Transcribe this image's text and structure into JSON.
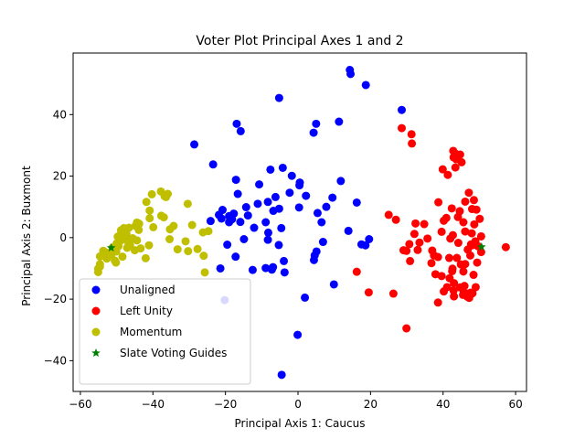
{
  "chart_data": {
    "type": "scatter",
    "title": "Voter Plot Principal Axes 1 and 2",
    "xlabel": "Principal Axis 1: Caucus",
    "ylabel": "Principal Axis 2: Buxmont",
    "xlim": [
      -62,
      63
    ],
    "ylim": [
      -50,
      60
    ],
    "xticks": [
      -60,
      -40,
      -20,
      0,
      20,
      40,
      60
    ],
    "yticks": [
      -40,
      -20,
      0,
      20,
      40
    ],
    "grid": false,
    "legend_position": "lower-left",
    "series": [
      {
        "name": "Unaligned",
        "color": "#0000ff",
        "marker": "circle",
        "points": [
          [
            14.3,
            54.5
          ],
          [
            14.5,
            53.2
          ],
          [
            18.7,
            49.6
          ],
          [
            -5.2,
            45.4
          ],
          [
            28.6,
            41.5
          ],
          [
            -16.9,
            37.0
          ],
          [
            5.0,
            37.0
          ],
          [
            11.3,
            37.7
          ],
          [
            4.3,
            34.1
          ],
          [
            -15.8,
            34.6
          ],
          [
            -28.6,
            30.3
          ],
          [
            -23.4,
            23.8
          ],
          [
            -7.6,
            22.1
          ],
          [
            -4.2,
            22.7
          ],
          [
            -1.7,
            20.1
          ],
          [
            0.5,
            17.9
          ],
          [
            11.8,
            18.4
          ],
          [
            -17.1,
            18.8
          ],
          [
            0.4,
            17.0
          ],
          [
            -10.7,
            17.3
          ],
          [
            -16.6,
            14.2
          ],
          [
            -8.3,
            11.6
          ],
          [
            -6.2,
            13.2
          ],
          [
            -5.2,
            9.4
          ],
          [
            -2.3,
            14.6
          ],
          [
            2.2,
            13.6
          ],
          [
            9.5,
            13.0
          ],
          [
            16.2,
            11.4
          ],
          [
            -11.1,
            11.0
          ],
          [
            -14.3,
            9.9
          ],
          [
            -19.0,
            7.0
          ],
          [
            -24.1,
            5.4
          ],
          [
            -20.8,
            9.0
          ],
          [
            -17.7,
            7.8
          ],
          [
            -13.8,
            7.2
          ],
          [
            0.3,
            9.8
          ],
          [
            7.8,
            10.0
          ],
          [
            5.4,
            8.0
          ],
          [
            -15.9,
            5.1
          ],
          [
            -8.9,
            5.0
          ],
          [
            -6.8,
            8.7
          ],
          [
            -19.0,
            5.0
          ],
          [
            -21.8,
            7.4
          ],
          [
            -21.1,
            6.2
          ],
          [
            -18.2,
            6.0
          ],
          [
            -12.1,
            3.2
          ],
          [
            -4.6,
            3.1
          ],
          [
            6.5,
            5.0
          ],
          [
            -8.2,
            1.6
          ],
          [
            -14.9,
            -0.5
          ],
          [
            -8.3,
            -0.7
          ],
          [
            -5.3,
            -2.4
          ],
          [
            -19.5,
            -2.3
          ],
          [
            13.9,
            2.2
          ],
          [
            19.6,
            -0.5
          ],
          [
            17.5,
            -2.2
          ],
          [
            18.6,
            -2.5
          ],
          [
            6.9,
            -1.4
          ],
          [
            5.1,
            -4.5
          ],
          [
            4.6,
            -5.8
          ],
          [
            4.4,
            -7.3
          ],
          [
            -17.2,
            -6.2
          ],
          [
            -3.9,
            -7.6
          ],
          [
            -21.4,
            -10.0
          ],
          [
            -12.5,
            -10.5
          ],
          [
            -8.9,
            -9.9
          ],
          [
            -6.9,
            -9.6
          ],
          [
            -7.2,
            -10.4
          ],
          [
            -3.7,
            -11.3
          ],
          [
            9.9,
            -15.2
          ],
          [
            -20.2,
            -20.3
          ],
          [
            1.9,
            -19.5
          ],
          [
            -0.1,
            -31.6
          ],
          [
            -4.5,
            -44.6
          ]
        ]
      },
      {
        "name": "Left Unity",
        "color": "#ff0000",
        "marker": "circle",
        "points": [
          [
            28.6,
            35.6
          ],
          [
            31.3,
            33.6
          ],
          [
            31.4,
            30.6
          ],
          [
            42.8,
            28.2
          ],
          [
            43.3,
            27.4
          ],
          [
            44.7,
            27.0
          ],
          [
            42.9,
            26.1
          ],
          [
            43.6,
            25.5
          ],
          [
            45.1,
            24.5
          ],
          [
            39.9,
            22.2
          ],
          [
            43.4,
            22.8
          ],
          [
            41.3,
            20.4
          ],
          [
            47.1,
            14.6
          ],
          [
            38.7,
            11.5
          ],
          [
            46.1,
            11.7
          ],
          [
            48.5,
            12.2
          ],
          [
            48.0,
            9.3
          ],
          [
            49.2,
            9.1
          ],
          [
            42.4,
            9.5
          ],
          [
            44.6,
            8.6
          ],
          [
            25.0,
            7.4
          ],
          [
            27.0,
            5.8
          ],
          [
            32.4,
            4.6
          ],
          [
            34.8,
            4.4
          ],
          [
            40.9,
            6.4
          ],
          [
            44.1,
            6.7
          ],
          [
            40.2,
            5.5
          ],
          [
            45.6,
            5.0
          ],
          [
            48.6,
            4.3
          ],
          [
            50.1,
            6.1
          ],
          [
            39.6,
            1.9
          ],
          [
            42.7,
            0.8
          ],
          [
            46.1,
            2.0
          ],
          [
            47.9,
            1.4
          ],
          [
            44.2,
            -1.7
          ],
          [
            32.1,
            1.2
          ],
          [
            35.7,
            -0.3
          ],
          [
            33.5,
            -1.6
          ],
          [
            30.7,
            -2.1
          ],
          [
            42.0,
            -0.3
          ],
          [
            50.5,
            0.4
          ],
          [
            48.9,
            -1.2
          ],
          [
            47.7,
            -2.2
          ],
          [
            48.0,
            -2.5
          ],
          [
            49.6,
            -2.8
          ],
          [
            29.1,
            -4.1
          ],
          [
            29.9,
            -4.3
          ],
          [
            33.0,
            -4.0
          ],
          [
            37.0,
            -4.2
          ],
          [
            46.8,
            -3.9
          ],
          [
            50.5,
            -4.7
          ],
          [
            37.5,
            -5.8
          ],
          [
            38.6,
            -6.3
          ],
          [
            41.7,
            -6.6
          ],
          [
            47.5,
            -5.8
          ],
          [
            43.8,
            -6.6
          ],
          [
            30.9,
            -7.6
          ],
          [
            36.8,
            -8.3
          ],
          [
            42.6,
            -10.1
          ],
          [
            44.9,
            -8.7
          ],
          [
            46.1,
            -8.6
          ],
          [
            49.4,
            -8.1
          ],
          [
            42.5,
            -10.9
          ],
          [
            45.6,
            -11.0
          ],
          [
            37.9,
            -11.9
          ],
          [
            39.6,
            -12.5
          ],
          [
            41.8,
            -13.2
          ],
          [
            48.4,
            -12.1
          ],
          [
            43.0,
            -14.8
          ],
          [
            45.9,
            -15.7
          ],
          [
            49.0,
            -16.1
          ],
          [
            42.9,
            -17.2
          ],
          [
            40.2,
            -17.5
          ],
          [
            41.1,
            -16.1
          ],
          [
            44.7,
            -16.2
          ],
          [
            45.7,
            -17.8
          ],
          [
            46.8,
            -18.2
          ],
          [
            47.6,
            -17.9
          ],
          [
            45.5,
            -18.6
          ],
          [
            46.7,
            -19.2
          ],
          [
            47.2,
            -19.6
          ],
          [
            48.1,
            -18.1
          ],
          [
            43.0,
            -19.1
          ],
          [
            26.3,
            -18.2
          ],
          [
            19.5,
            -17.8
          ],
          [
            38.6,
            -21.1
          ],
          [
            16.2,
            -11.1
          ],
          [
            57.3,
            -3.1
          ],
          [
            29.9,
            -29.5
          ]
        ]
      },
      {
        "name": "Momentum",
        "color": "#bfbf00",
        "marker": "circle",
        "points": [
          [
            -37.8,
            15.0
          ],
          [
            -40.3,
            14.1
          ],
          [
            -41.8,
            11.6
          ],
          [
            -36.8,
            13.5
          ],
          [
            -35.9,
            14.2
          ],
          [
            -36.4,
            13.2
          ],
          [
            -40.9,
            8.8
          ],
          [
            -37.7,
            7.1
          ],
          [
            -37.0,
            6.6
          ],
          [
            -30.4,
            11.0
          ],
          [
            -40.9,
            6.3
          ],
          [
            -43.8,
            4.5
          ],
          [
            -44.8,
            3.8
          ],
          [
            -44.4,
            4.9
          ],
          [
            -39.9,
            3.4
          ],
          [
            -34.3,
            3.8
          ],
          [
            -35.3,
            2.7
          ],
          [
            -29.2,
            4.1
          ],
          [
            -43.9,
            2.5
          ],
          [
            -46.6,
            3.2
          ],
          [
            -47.6,
            1.7
          ],
          [
            -48.8,
            2.4
          ],
          [
            -48.0,
            3.1
          ],
          [
            -47.3,
            1.2
          ],
          [
            -49.2,
            0.6
          ],
          [
            -49.7,
            0.3
          ],
          [
            -48.8,
            -0.9
          ],
          [
            -47.9,
            -0.4
          ],
          [
            -46.9,
            -0.3
          ],
          [
            -45.6,
            -0.2
          ],
          [
            -46.8,
            -1.5
          ],
          [
            -49.5,
            -2.8
          ],
          [
            -47.1,
            -3.3
          ],
          [
            -44.4,
            -0.9
          ],
          [
            -35.4,
            -0.5
          ],
          [
            -31.0,
            -1.2
          ],
          [
            -26.2,
            1.7
          ],
          [
            -24.7,
            2.1
          ],
          [
            -41.1,
            -2.5
          ],
          [
            -43.4,
            -3.5
          ],
          [
            -45.0,
            -4.1
          ],
          [
            -50.1,
            -4.5
          ],
          [
            -53.7,
            -4.3
          ],
          [
            -52.8,
            -4.9
          ],
          [
            -51.5,
            -5.6
          ],
          [
            -53.8,
            -5.9
          ],
          [
            -54.6,
            -6.1
          ],
          [
            -52.7,
            -6.8
          ],
          [
            -50.5,
            -7.5
          ],
          [
            -50.2,
            -8.1
          ],
          [
            -54.6,
            -8.6
          ],
          [
            -54.6,
            -9.4
          ],
          [
            -55.1,
            -10.1
          ],
          [
            -55.1,
            -11.2
          ],
          [
            -30.3,
            -4.4
          ],
          [
            -27.7,
            -3.7
          ],
          [
            -33.2,
            -3.8
          ],
          [
            -26.0,
            -5.9
          ],
          [
            -42.0,
            -6.7
          ],
          [
            -25.7,
            -11.3
          ],
          [
            -50.0,
            -1.9
          ],
          [
            -51.1,
            -3.2
          ],
          [
            -46.3,
            -2.4
          ],
          [
            -48.4,
            -6.2
          ]
        ]
      },
      {
        "name": "Slate Voting Guides",
        "color": "#008000",
        "marker": "star",
        "points": [
          [
            -51.5,
            -3.3
          ],
          [
            50.6,
            -3.0
          ]
        ]
      }
    ]
  }
}
